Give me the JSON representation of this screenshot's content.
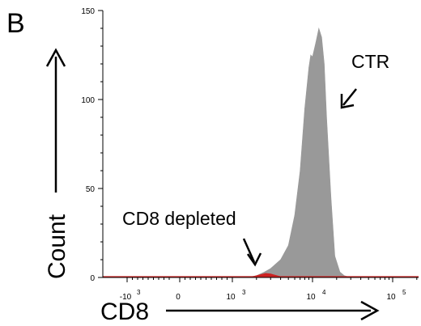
{
  "panel_letter": "B",
  "chart_data": {
    "type": "area",
    "title": "",
    "xlabel": "CD8",
    "ylabel": "Count",
    "xscale": "biexponential",
    "ylim": [
      0,
      150
    ],
    "y_ticks": [
      0,
      50,
      100,
      150
    ],
    "x_ticks": [
      {
        "value": -1000,
        "base": "-10",
        "exp": "3"
      },
      {
        "value": 0,
        "base": "0",
        "exp": ""
      },
      {
        "value": 1000,
        "base": "10",
        "exp": "3"
      },
      {
        "value": 10000,
        "base": "10",
        "exp": "4"
      },
      {
        "value": 100000,
        "base": "10",
        "exp": "5"
      }
    ],
    "series": [
      {
        "name": "CTR",
        "color": "#999999",
        "x": [
          1500,
          2000,
          2500,
          3000,
          4000,
          5000,
          6000,
          7000,
          8000,
          9000,
          9500,
          10000,
          11000,
          12000,
          13000,
          14000,
          15000,
          17000,
          19000,
          22000,
          25000,
          30000
        ],
        "y": [
          0,
          1,
          3,
          5,
          10,
          18,
          35,
          60,
          95,
          118,
          125,
          124,
          132,
          140,
          135,
          120,
          90,
          45,
          12,
          3,
          1,
          0
        ]
      },
      {
        "name": "CD8 depleted",
        "color": "#cc2222",
        "x": [
          1500,
          1800,
          2200,
          2600,
          3000,
          3500,
          4000,
          5000
        ],
        "y": [
          0,
          0.5,
          1.5,
          2.3,
          2.0,
          1.2,
          0.5,
          0
        ]
      }
    ],
    "annotations": [
      {
        "text": "CTR",
        "target": "CTR"
      },
      {
        "text": "CD8 depleted",
        "target": "CD8 depleted"
      }
    ],
    "grid": false,
    "legend": "none"
  }
}
